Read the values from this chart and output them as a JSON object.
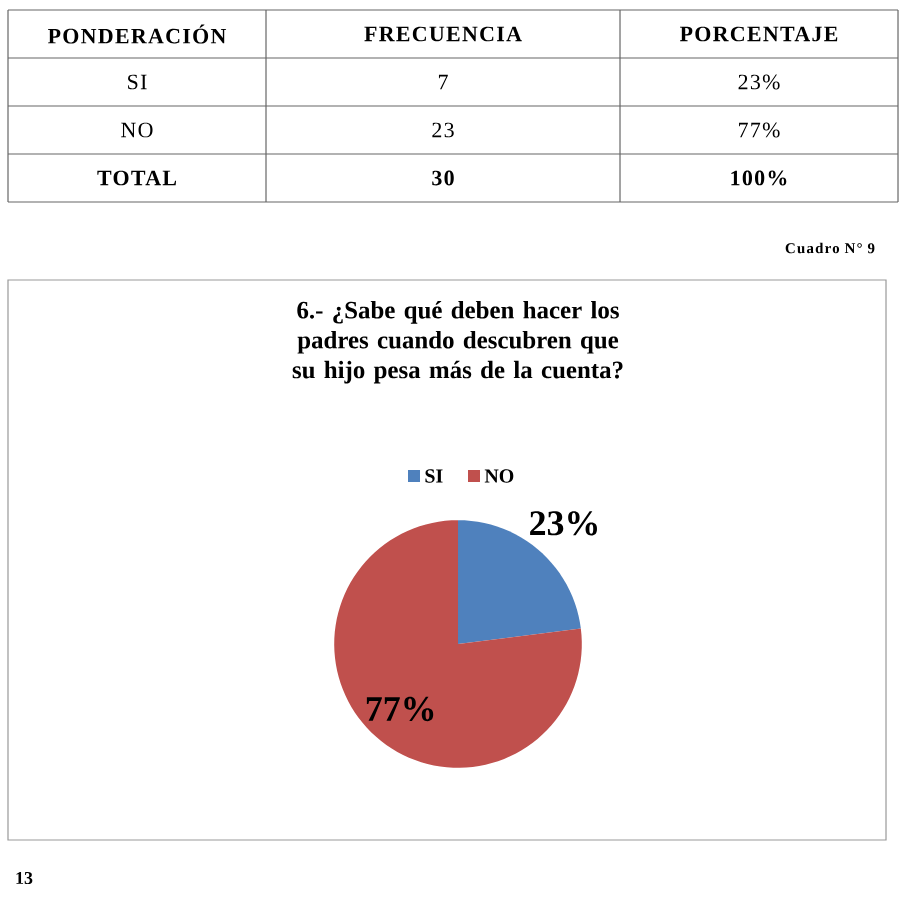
{
  "chart_data": {
    "type": "pie",
    "title": "6.- ¿Sabe qué deben hacer los padres cuando descubren que su hijo pesa más de la cuenta?",
    "categories": [
      "SI",
      "NO"
    ],
    "values": [
      23,
      77
    ],
    "colors": [
      "#4f81bd",
      "#c0504d"
    ],
    "value_labels": [
      "23%",
      "77%"
    ],
    "legend": "top",
    "annotations": [
      "PONDERACIÓN",
      "FRECUENCIA",
      "PORCENTAJE",
      "SI",
      "7",
      "23%",
      "NO",
      "23",
      "77%",
      "TOTAL",
      "30",
      "100%",
      "Cuadro N° 9",
      "13"
    ]
  }
}
